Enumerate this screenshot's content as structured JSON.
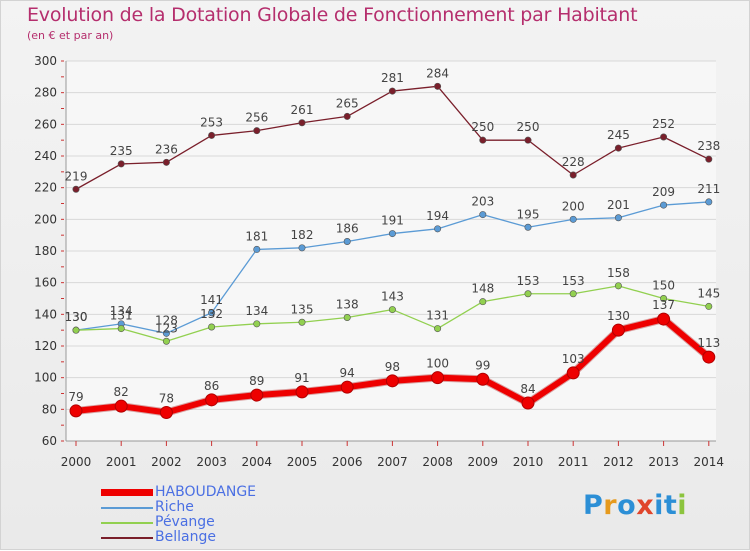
{
  "header": {
    "title": "Evolution de la Dotation Globale de Fonctionnement par Habitant",
    "subtitle": "(en € et par an)"
  },
  "logo": {
    "text": "Proxiti",
    "letters": [
      "P",
      "r",
      "o",
      "x",
      "i",
      "t",
      "i"
    ],
    "colors": [
      "#2c8fd6",
      "#e69a1d",
      "#2c8fd6",
      "#e0452b",
      "#2c8fd6",
      "#2c8fd6",
      "#8cc43e"
    ]
  },
  "chart_data": {
    "type": "line",
    "title": "Evolution de la Dotation Globale de Fonctionnement par Habitant",
    "subtitle": "(en € et par an)",
    "xlabel": "",
    "ylabel": "",
    "x": [
      "2000",
      "2001",
      "2002",
      "2003",
      "2004",
      "2005",
      "2006",
      "2007",
      "2008",
      "2009",
      "2010",
      "2011",
      "2012",
      "2013",
      "2014"
    ],
    "ylim": [
      60,
      300
    ],
    "yticks": [
      "60",
      "80",
      "100",
      "120",
      "140",
      "160",
      "180",
      "200",
      "220",
      "240",
      "260",
      "280",
      "300"
    ],
    "grid": true,
    "legend_position": "bottom-left",
    "series": [
      {
        "name": "Bellange",
        "color": "#7a1f2b",
        "width": 1.3,
        "values": [
          219,
          235,
          236,
          253,
          256,
          261,
          265,
          281,
          284,
          250,
          250,
          228,
          245,
          252,
          238
        ],
        "labels": [
          "219",
          "235",
          "236",
          "253",
          "256",
          "261",
          "265",
          "281",
          "284",
          "250",
          "250",
          "228",
          "245",
          "252",
          "238"
        ]
      },
      {
        "name": "Riche",
        "color": "#5b9bd5",
        "width": 1.3,
        "values": [
          130,
          134,
          128,
          141,
          181,
          182,
          186,
          191,
          194,
          203,
          195,
          200,
          201,
          209,
          211
        ],
        "labels": [
          "130",
          "134",
          "128",
          "141",
          "181",
          "182",
          "186",
          "191",
          "194",
          "203",
          "195",
          "200",
          "201",
          "209",
          "211"
        ]
      },
      {
        "name": "Pévange",
        "color": "#92d050",
        "width": 1.3,
        "values": [
          130,
          131,
          123,
          132,
          134,
          135,
          138,
          143,
          131,
          148,
          153,
          153,
          158,
          150,
          145
        ],
        "labels": [
          "130",
          "131",
          "123",
          "132",
          "134",
          "135",
          "138",
          "143",
          "131",
          "148",
          "153",
          "153",
          "158",
          "150",
          "145"
        ]
      },
      {
        "name": "HABOUDANGE",
        "color": "#ee0000",
        "width": 6,
        "values": [
          79,
          82,
          78,
          86,
          89,
          91,
          94,
          98,
          100,
          99,
          84,
          103,
          130,
          137,
          113
        ],
        "labels": [
          "79",
          "82",
          "78",
          "86",
          "89",
          "91",
          "94",
          "98",
          "100",
          "99",
          "84",
          "103",
          "130",
          "137",
          "113"
        ]
      }
    ]
  },
  "legend": [
    {
      "name": "HABOUDANGE",
      "color": "#ee0000"
    },
    {
      "name": "Riche",
      "color": "#5b9bd5"
    },
    {
      "name": "Pévange",
      "color": "#92d050"
    },
    {
      "name": "Bellange",
      "color": "#7a1f2b"
    }
  ]
}
